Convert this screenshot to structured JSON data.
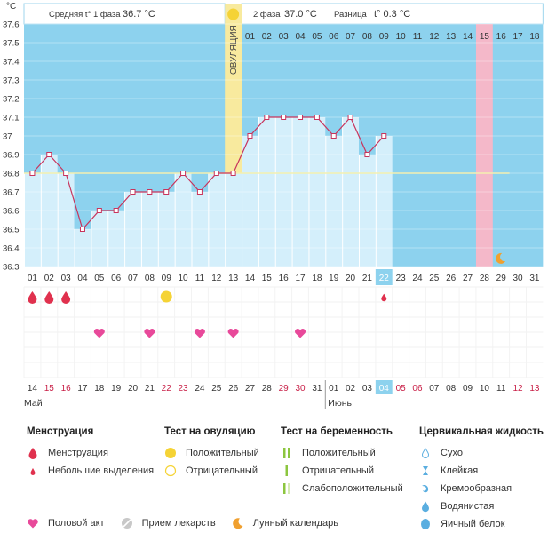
{
  "header": {
    "phase1_label": "Средняя t° 1 фаза",
    "phase1_value": "36.7 °C",
    "phase2_label": "2 фаза",
    "phase2_value": "37.0 °C",
    "diff_label": "Разница",
    "diff_value": "t° 0.3 °C"
  },
  "chart_data": {
    "type": "line",
    "title": "",
    "unit_label": "°C",
    "ylim": [
      36.3,
      37.6
    ],
    "y_ticks": [
      "36.3",
      "36.4",
      "36.5",
      "36.6",
      "36.7",
      "36.8",
      "36.9",
      "37",
      "37.1",
      "37.2",
      "37.3",
      "37.4",
      "37.5",
      "37.6"
    ],
    "cycle_days": [
      "01",
      "02",
      "03",
      "04",
      "05",
      "06",
      "07",
      "08",
      "09",
      "10",
      "11",
      "12",
      "13",
      "14",
      "15",
      "16",
      "17",
      "18",
      "19",
      "20",
      "21",
      "22",
      "23",
      "24",
      "25",
      "26",
      "27",
      "28",
      "29",
      "30",
      "31"
    ],
    "series": [
      {
        "name": "",
        "values": [
          36.8,
          36.9,
          36.8,
          36.5,
          36.6,
          36.6,
          36.7,
          36.7,
          36.7,
          36.8,
          36.7,
          36.8,
          36.8,
          37.0,
          37.1,
          37.1,
          37.1,
          37.1,
          37.0,
          37.1,
          36.9,
          37.0
        ]
      }
    ],
    "coverline": 36.8,
    "ovulation_day": 13,
    "ovulation_label": "ОВУЛЯЦИЯ",
    "phase2_day_numbers": [
      "01",
      "02",
      "03",
      "04",
      "05",
      "06",
      "07",
      "08",
      "09",
      "10",
      "11",
      "12",
      "13",
      "14",
      "15",
      "16",
      "17",
      "18"
    ],
    "expected_period_day": 28,
    "current_day": 22,
    "calendar_dates": [
      "14",
      "15",
      "16",
      "17",
      "18",
      "19",
      "20",
      "21",
      "22",
      "23",
      "24",
      "25",
      "26",
      "27",
      "28",
      "29",
      "30",
      "31",
      "01",
      "02",
      "03",
      "04",
      "05",
      "06",
      "07",
      "08",
      "09",
      "10",
      "11",
      "12",
      "13"
    ],
    "calendar_weekend_flags": [
      false,
      true,
      true,
      false,
      false,
      false,
      false,
      false,
      true,
      true,
      false,
      false,
      false,
      false,
      false,
      true,
      true,
      false,
      false,
      false,
      false,
      false,
      true,
      true,
      false,
      false,
      false,
      false,
      false,
      true,
      true
    ],
    "months": [
      {
        "name": "Май",
        "start_day": 1
      },
      {
        "name": "Июнь",
        "start_day": 19
      }
    ],
    "menstruation_days": [
      1,
      2,
      3
    ],
    "spotting_days": [
      22
    ],
    "ovulation_test_positive_days": [
      9
    ],
    "intercourse_days": [
      5,
      8,
      11,
      13,
      17
    ],
    "moon_day": 29
  },
  "legend": {
    "menstruation": {
      "title": "Менструация",
      "items": [
        "Менструация",
        "Небольшие выделения"
      ]
    },
    "ovulation_test": {
      "title": "Тест на овуляцию",
      "items": [
        "Положительный",
        "Отрицательный"
      ]
    },
    "pregnancy_test": {
      "title": "Тест на беременность",
      "items": [
        "Положительный",
        "Отрицательный",
        "Слабоположительный"
      ]
    },
    "cervical": {
      "title": "Цервикальная жидкость",
      "items": [
        "Сухо",
        "Клейкая",
        "Кремообразная",
        "Водянистая",
        "Яичный белок"
      ]
    },
    "bottom": [
      "Половой акт",
      "Прием лекарств",
      "Лунный календарь"
    ]
  },
  "colors": {
    "phase_bg": "#8dd2ee",
    "fill": "#d4effb",
    "line": "#c8345c",
    "ovulation": "#f8ea9e",
    "period_expected": "#f4b8c9",
    "current_day": "#8dd2ee",
    "blood": "#e0314e",
    "heart": "#e8499a",
    "ov_test": "#f5d335",
    "moon": "#f0a030"
  }
}
